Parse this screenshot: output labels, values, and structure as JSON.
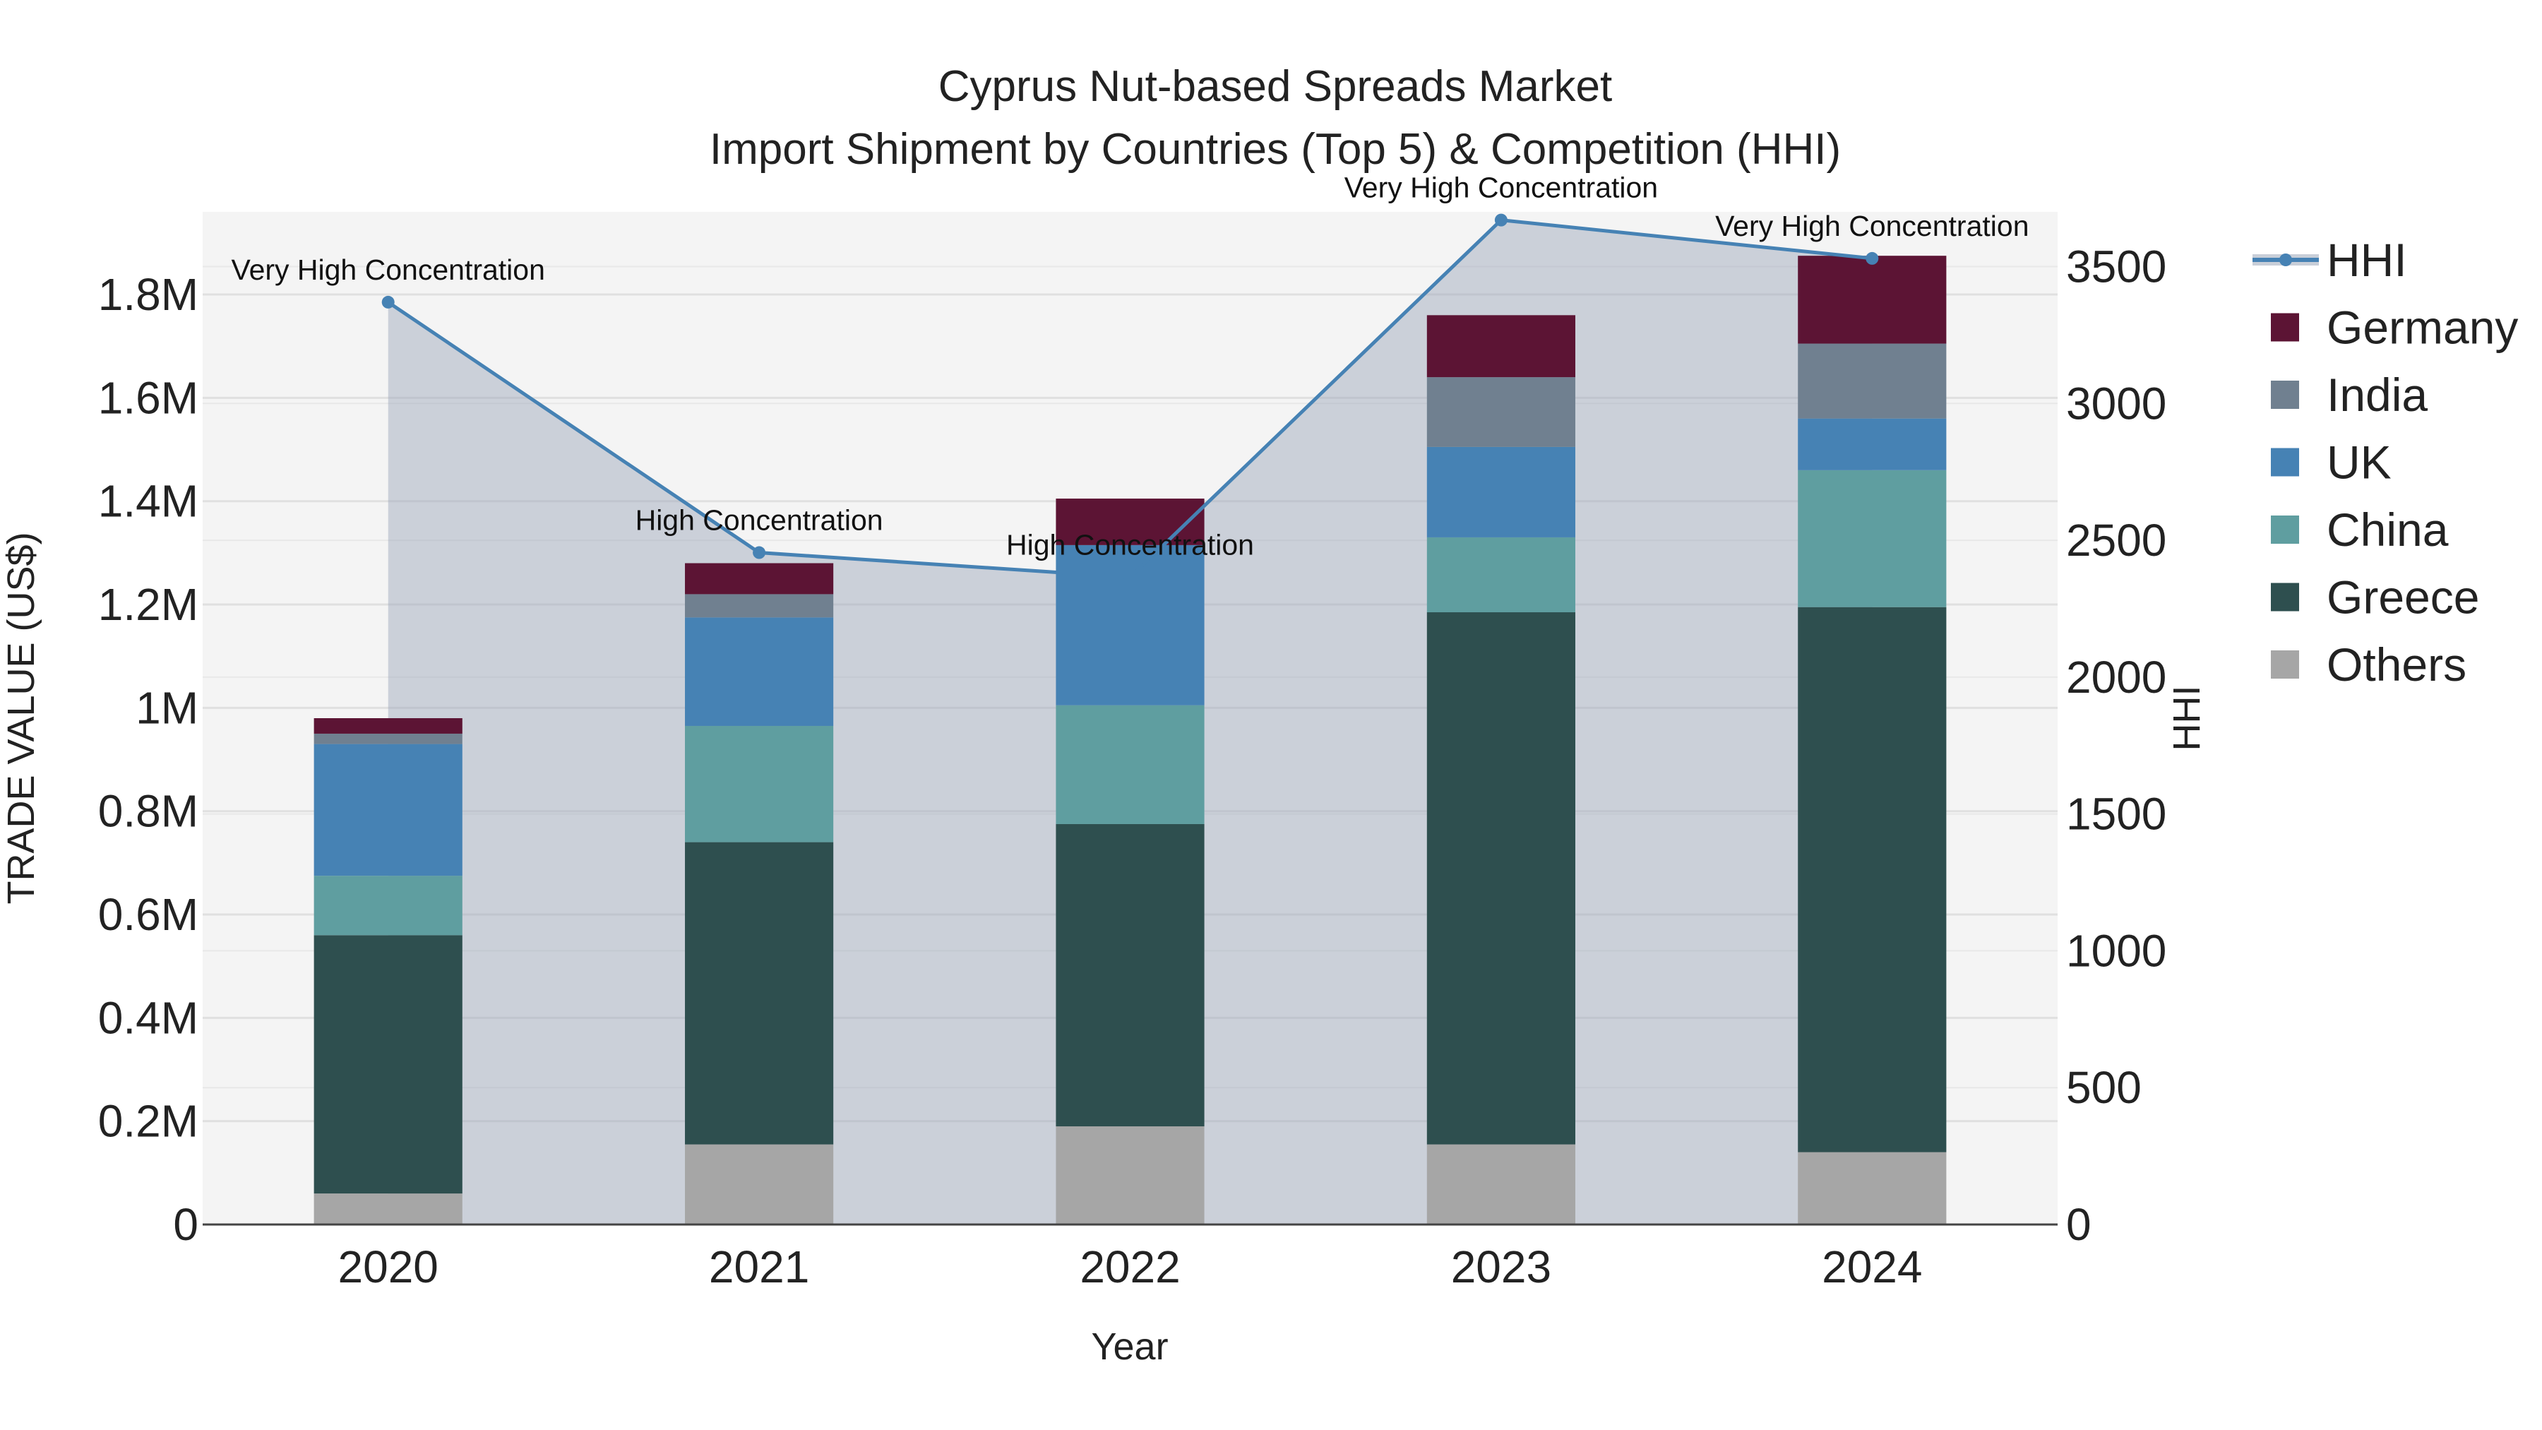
{
  "chart_data": {
    "type": "bar",
    "stacked": true,
    "title_lines": [
      "Cyprus Nut-based Spreads Market",
      "Import Shipment by Countries (Top 5) & Competition (HHI)"
    ],
    "xlabel": "Year",
    "ylabel": "TRADE VALUE (US$)",
    "y2label": "HHI",
    "categories": [
      "2020",
      "2021",
      "2022",
      "2023",
      "2024"
    ],
    "ylim": [
      0,
      1960000
    ],
    "y_ticks": [
      0,
      200000,
      400000,
      600000,
      800000,
      1000000,
      1200000,
      1400000,
      1600000,
      1800000
    ],
    "y_tick_labels": [
      "0",
      "0.2M",
      "0.4M",
      "0.6M",
      "0.8M",
      "1M",
      "1.2M",
      "1.4M",
      "1.6M",
      "1.8M"
    ],
    "y2lim": [
      0,
      3700
    ],
    "y2_ticks": [
      0,
      500,
      1000,
      1500,
      2000,
      2500,
      3000,
      3500
    ],
    "y2_tick_labels": [
      "0",
      "500",
      "1000",
      "1500",
      "2000",
      "2500",
      "3000",
      "3500"
    ],
    "series": [
      {
        "name": "Others",
        "color": "#a6a6a6",
        "values": [
          60000,
          155000,
          190000,
          155000,
          140000
        ]
      },
      {
        "name": "Greece",
        "color": "#2e4f4f",
        "values": [
          500000,
          585000,
          585000,
          1030000,
          1055000
        ]
      },
      {
        "name": "China",
        "color": "#5f9ea0",
        "values": [
          115000,
          225000,
          230000,
          145000,
          265000
        ]
      },
      {
        "name": "UK",
        "color": "#4682b4",
        "values": [
          255000,
          210000,
          310000,
          175000,
          100000
        ]
      },
      {
        "name": "India",
        "color": "#708090",
        "values": [
          20000,
          45000,
          0,
          135000,
          145000
        ]
      },
      {
        "name": "Germany",
        "color": "#5c1434",
        "values": [
          30000,
          60000,
          90000,
          120000,
          170000
        ]
      }
    ],
    "hhi": {
      "name": "HHI",
      "color": "#4682b4",
      "values": [
        3370,
        2455,
        2365,
        3670,
        3530
      ],
      "labels": [
        "Very High Concentration",
        "High Concentration",
        "High Concentration",
        "Very High Concentration",
        "Very High Concentration"
      ]
    },
    "legend_order": [
      "HHI",
      "Germany",
      "India",
      "UK",
      "China",
      "Greece",
      "Others"
    ],
    "legend_position": "right"
  }
}
